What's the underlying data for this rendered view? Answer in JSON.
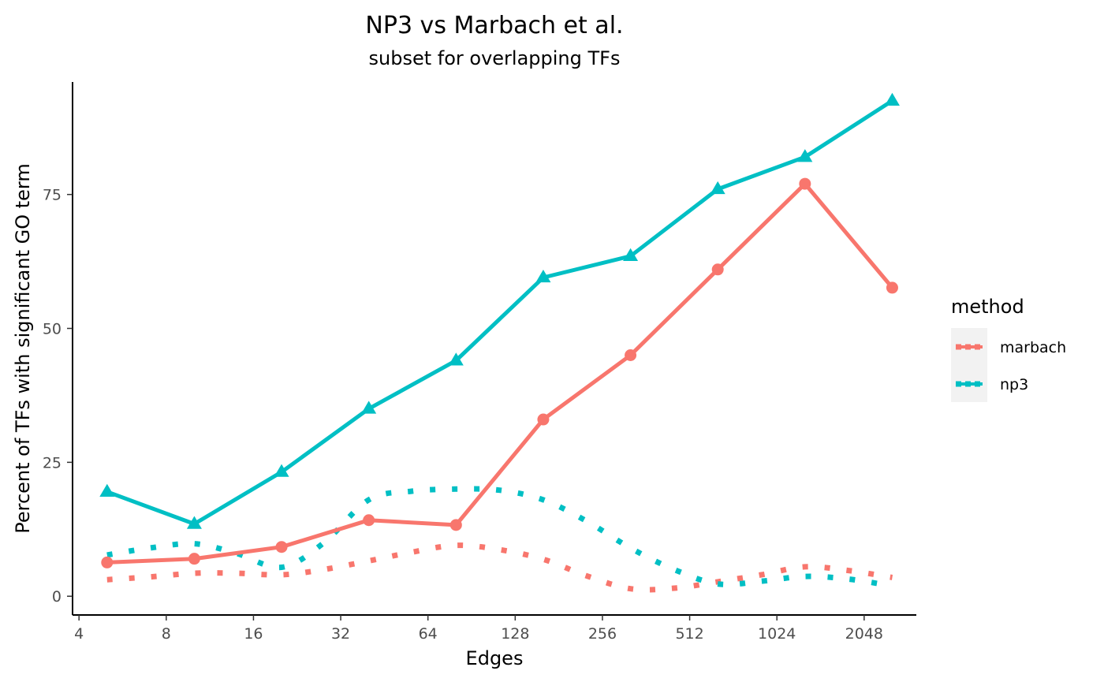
{
  "chart_data": {
    "type": "line",
    "title": "NP3 vs Marbach et al.",
    "subtitle": "subset for overlapping TFs",
    "xlabel": "Edges",
    "ylabel": "Percent of TFs with significant GO term",
    "x_scale": "log2",
    "xlim": [
      3.8,
      3100
    ],
    "ylim": [
      -3.5,
      96
    ],
    "x_ticks": [
      4,
      8,
      16,
      32,
      64,
      128,
      256,
      512,
      1024,
      2048
    ],
    "x_tick_labels": [
      "4",
      "8",
      "16",
      "32",
      "64",
      "128",
      "256",
      "512",
      "1024",
      "2048"
    ],
    "y_ticks": [
      0,
      25,
      50,
      75
    ],
    "y_tick_labels": [
      "0",
      "25",
      "50",
      "75"
    ],
    "grid": false,
    "legend": {
      "title": "method",
      "position": "right",
      "entries": [
        "marbach",
        "np3"
      ]
    },
    "series": [
      {
        "name": "marbach",
        "color": "#F8766D",
        "marker": "circle",
        "x": [
          5,
          10,
          20,
          40,
          80,
          160,
          320,
          640,
          1280,
          2560
        ],
        "values": [
          6.3,
          7.0,
          9.2,
          14.2,
          13.3,
          33.0,
          45.0,
          61.0,
          77.0,
          57.6
        ]
      },
      {
        "name": "np3",
        "color": "#00BFC4",
        "marker": "triangle",
        "x": [
          5,
          10,
          20,
          40,
          80,
          160,
          320,
          640,
          1280,
          2560
        ],
        "values": [
          19.5,
          13.5,
          23.2,
          35.0,
          44.0,
          59.5,
          63.5,
          76.0,
          82.0,
          92.5
        ]
      }
    ],
    "baseline_curves": [
      {
        "series": "marbach",
        "line_style": "dotted",
        "x": [
          5,
          7,
          10,
          14,
          20,
          28,
          40,
          56,
          80,
          113,
          160,
          226,
          320,
          452,
          640,
          905,
          1280,
          1810,
          2560
        ],
        "values": [
          3.1,
          3.6,
          4.3,
          4.3,
          4.0,
          5.0,
          6.6,
          8.2,
          9.5,
          8.7,
          6.9,
          3.8,
          1.4,
          1.5,
          2.7,
          4.0,
          5.5,
          4.8,
          3.5
        ]
      },
      {
        "series": "np3",
        "line_style": "dotted",
        "x": [
          5,
          7,
          10,
          14,
          20,
          28,
          40,
          56,
          80,
          113,
          160,
          226,
          320,
          452,
          640,
          905,
          1280,
          1810,
          2560
        ],
        "values": [
          7.7,
          9.0,
          9.8,
          8.0,
          5.4,
          10.0,
          18.0,
          19.6,
          20.0,
          19.8,
          18.0,
          14.0,
          9.0,
          5.0,
          2.3,
          2.8,
          3.7,
          3.2,
          1.9
        ]
      }
    ]
  }
}
